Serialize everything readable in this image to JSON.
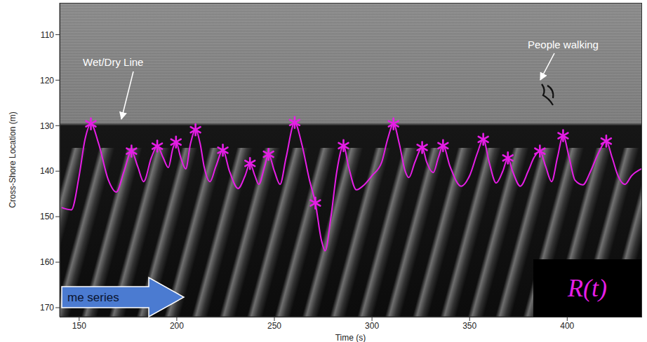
{
  "chart_data": {
    "type": "line",
    "x_label": "Time (s)",
    "y_label": "Cross-Shore Location (m)",
    "xlim": [
      140,
      438
    ],
    "xticks": [
      150,
      200,
      250,
      300,
      350,
      400
    ],
    "ylim": [
      172,
      103
    ],
    "yticks": [
      110,
      120,
      130,
      140,
      150,
      160,
      170
    ],
    "grid": false,
    "legend": "lower right",
    "annotations": [
      {
        "text": "Wet/Dry Line"
      },
      {
        "text": "People walking"
      },
      {
        "text": "me series"
      }
    ],
    "series": [
      {
        "name": "R(t)",
        "color": "#e61ee6",
        "line_style": "solid",
        "marker": "none",
        "x": [
          141,
          146,
          150,
          153,
          156,
          160,
          165,
          169,
          173,
          176.8,
          180,
          183,
          187,
          190,
          193,
          195.7,
          198,
          199.6,
          202,
          204.6,
          207,
          209.6,
          212,
          214,
          217,
          220,
          223.6,
          227,
          231.4,
          235,
          237.5,
          240,
          242,
          245,
          247,
          250,
          252.9,
          256,
          260.4,
          264,
          268,
          271,
          274,
          276,
          279,
          282,
          285.4,
          288,
          292,
          296,
          300,
          305,
          308,
          311,
          314,
          317,
          318.9,
          322,
          325.7,
          328,
          331.4,
          334,
          336.4,
          340,
          345.7,
          350,
          354,
          357,
          360,
          363.6,
          367,
          369.6,
          372,
          376,
          380,
          383,
          386,
          389,
          392,
          395,
          397.9,
          401,
          404,
          408,
          412,
          416,
          420,
          423,
          426,
          429.6,
          433,
          438
        ],
        "values": [
          148,
          148.5,
          141,
          133,
          129.6,
          134,
          142,
          144.6,
          140,
          135.6,
          139,
          142.3,
          137,
          134.5,
          137,
          139.2,
          135,
          133.6,
          137,
          139.5,
          134,
          130.9,
          134,
          139,
          142.3,
          139,
          135.4,
          140,
          143.8,
          141,
          138.3,
          141,
          142.9,
          139,
          136.3,
          140,
          142.9,
          137,
          129.3,
          134,
          142,
          147,
          155,
          157.5,
          150,
          140,
          134.4,
          139,
          144.1,
          143,
          141,
          138,
          133,
          129.6,
          134,
          140,
          141.4,
          138,
          134.8,
          138,
          140.3,
          137,
          134.4,
          139,
          143.3,
          141,
          136,
          133,
          138,
          142.6,
          140,
          137.1,
          140,
          143.3,
          140,
          137,
          135.6,
          139,
          142.3,
          137,
          132.2,
          137,
          142,
          143,
          140,
          136,
          133.4,
          137,
          141,
          142.9,
          141,
          139.5
        ]
      },
      {
        "color": "#e61ee6",
        "line_style": "none",
        "marker": "asterisk",
        "x": [
          156,
          176.8,
          190,
          199.6,
          209.6,
          223.6,
          237.5,
          247,
          260.4,
          271,
          285.4,
          311,
          325.7,
          336.4,
          357,
          369.6,
          386,
          397.9,
          420
        ],
        "values": [
          129.6,
          135.6,
          134.5,
          133.6,
          130.9,
          135.4,
          138.3,
          136.3,
          129.3,
          147,
          134.4,
          129.6,
          134.8,
          134.4,
          133,
          137.1,
          135.6,
          132.2,
          133.4
        ]
      }
    ]
  }
}
